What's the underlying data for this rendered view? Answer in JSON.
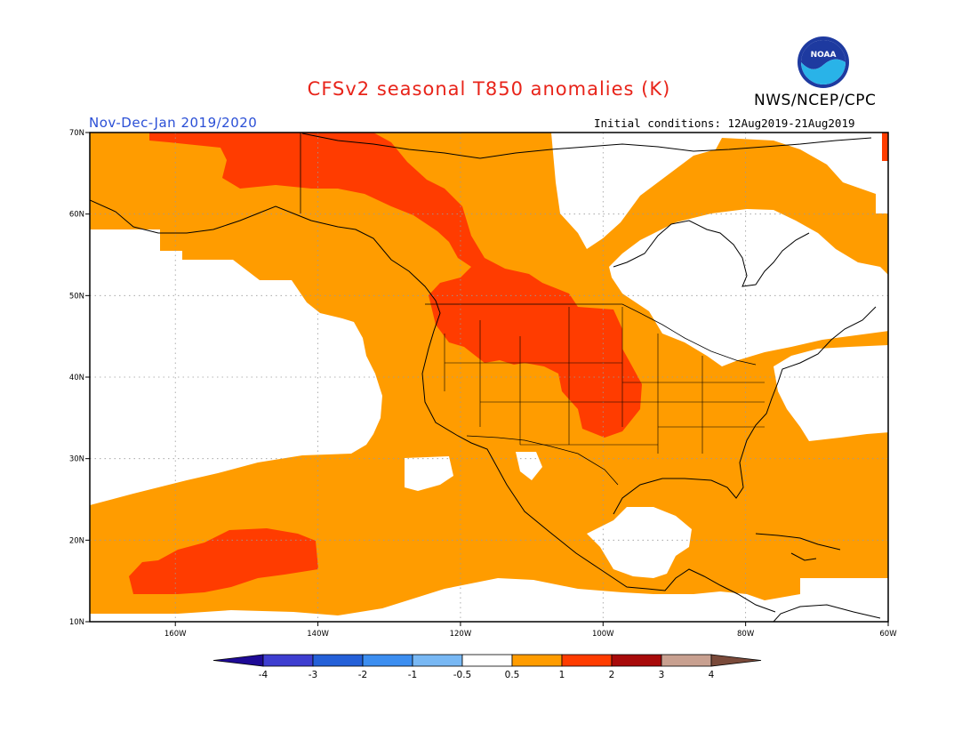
{
  "header": {
    "title": "CFSv2 seasonal T850 anomalies (K)",
    "agency": "NWS/NCEP/CPC",
    "period": "Nov-Dec-Jan 2019/2020",
    "initial_conditions": "Initial conditions: 12Aug2019-21Aug2019",
    "logo_text": "NOAA"
  },
  "colors": {
    "title": "#e8241a",
    "period": "#2a4fd6",
    "anomaly_05_1": "#ff9c00",
    "anomaly_1_2": "#ff3c00",
    "land_outline": "#000000",
    "grid": "#9a9a9a"
  },
  "map": {
    "lon_range": [
      -172,
      -60
    ],
    "lat_range": [
      10,
      70
    ],
    "lat_ticks": [
      {
        "value": 70,
        "label": "70N"
      },
      {
        "value": 60,
        "label": "60N"
      },
      {
        "value": 50,
        "label": "50N"
      },
      {
        "value": 40,
        "label": "40N"
      },
      {
        "value": 30,
        "label": "30N"
      },
      {
        "value": 20,
        "label": "20N"
      },
      {
        "value": 10,
        "label": "10N"
      }
    ],
    "lon_ticks": [
      {
        "value": -160,
        "label": "160W"
      },
      {
        "value": -140,
        "label": "140W"
      },
      {
        "value": -120,
        "label": "120W"
      },
      {
        "value": -100,
        "label": "100W"
      },
      {
        "value": -80,
        "label": "80W"
      },
      {
        "value": -60,
        "label": "60W"
      }
    ]
  },
  "legend": {
    "bins": [
      {
        "color": "#1e0a96"
      },
      {
        "color": "#3e3ed0"
      },
      {
        "color": "#2460d8"
      },
      {
        "color": "#3c8ef0"
      },
      {
        "color": "#78b8f4"
      },
      {
        "color": "#ffffff"
      },
      {
        "color": "#ff9c00"
      },
      {
        "color": "#ff3c00"
      },
      {
        "color": "#a80a0a"
      },
      {
        "color": "#c8a090"
      },
      {
        "color": "#7a4a3a"
      }
    ],
    "labels": [
      "-4",
      "-3",
      "-2",
      "-1",
      "-0.5",
      "0.5",
      "1",
      "2",
      "3",
      "4"
    ]
  }
}
